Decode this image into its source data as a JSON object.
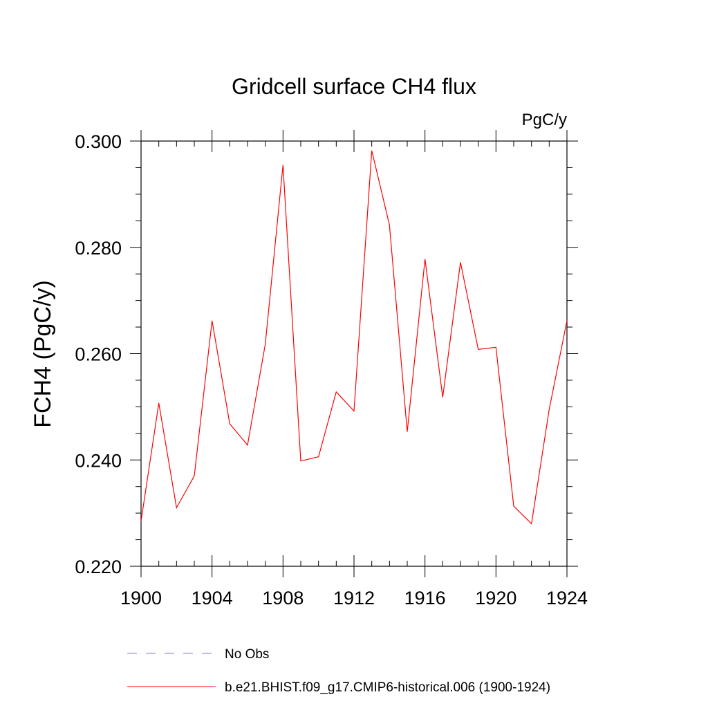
{
  "chart_data": {
    "type": "line",
    "title": "Gridcell surface CH4 flux",
    "units_label": "PgC/y",
    "ylabel": "FCH4  (PgC/y)",
    "xlabel": "",
    "xlim": [
      1900,
      1924
    ],
    "ylim": [
      0.22,
      0.3
    ],
    "x_ticks": [
      "1900",
      "1904",
      "1908",
      "1912",
      "1916",
      "1920",
      "1924"
    ],
    "y_ticks": [
      "0.220",
      "0.240",
      "0.260",
      "0.280",
      "0.300"
    ],
    "grid": false,
    "legend_position": "bottom",
    "x": [
      1900,
      1901,
      1902,
      1903,
      1904,
      1905,
      1906,
      1907,
      1908,
      1909,
      1910,
      1911,
      1912,
      1913,
      1914,
      1915,
      1916,
      1917,
      1918,
      1919,
      1920,
      1921,
      1922,
      1923,
      1924
    ],
    "series": [
      {
        "name": "b.e21.BHIST.f09_g17.CMIP6-historical.006 (1900-1924)",
        "color": "#ff0000",
        "style": "solid",
        "values": [
          0.2285,
          0.2507,
          0.231,
          0.237,
          0.2662,
          0.2468,
          0.2428,
          0.2618,
          0.2955,
          0.2398,
          0.2406,
          0.2528,
          0.2492,
          0.2982,
          0.2842,
          0.2453,
          0.2778,
          0.2518,
          0.2772,
          0.2608,
          0.2612,
          0.2313,
          0.228,
          0.2495,
          0.2662
        ]
      }
    ],
    "legend": [
      {
        "label": "No Obs",
        "color": "#7b7bd6",
        "style": "dashed"
      },
      {
        "label": "b.e21.BHIST.f09_g17.CMIP6-historical.006 (1900-1924)",
        "color": "#ff0000",
        "style": "solid"
      }
    ]
  }
}
